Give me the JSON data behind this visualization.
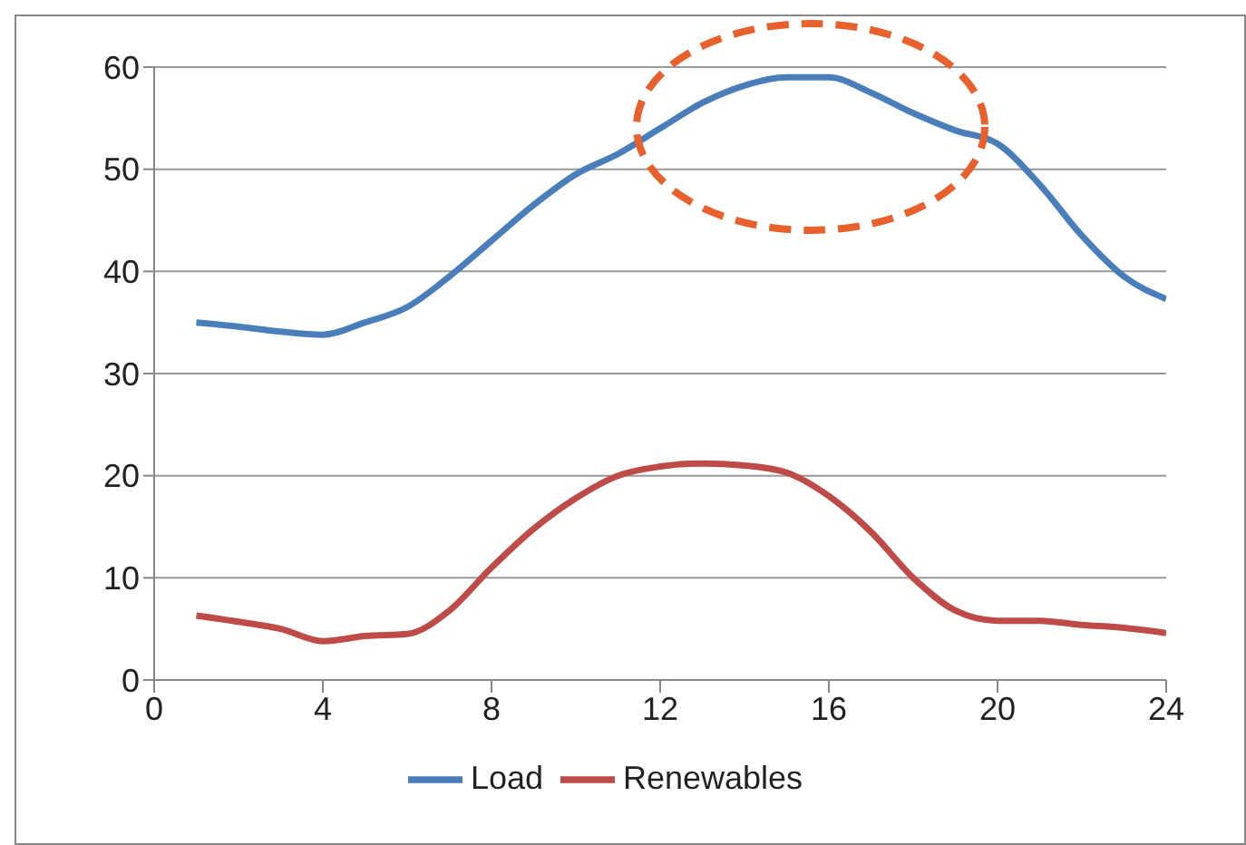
{
  "chart_data": {
    "type": "line",
    "x": [
      1,
      2,
      3,
      4,
      5,
      6,
      7,
      8,
      9,
      10,
      11,
      12,
      13,
      14,
      15,
      16,
      17,
      18,
      19,
      20,
      21,
      22,
      23,
      24
    ],
    "series": [
      {
        "name": "Load",
        "color": "#4a7ebb",
        "values": [
          35,
          34.6,
          34.1,
          33.8,
          35,
          36.5,
          39.5,
          43,
          46.5,
          49.5,
          51.5,
          54,
          56.5,
          58.2,
          59,
          59,
          57.5,
          55.5,
          53.8,
          52.5,
          48.5,
          43.5,
          39.5,
          37.3
        ]
      },
      {
        "name": "Renewables",
        "color": "#be4b48",
        "values": [
          6.3,
          5.7,
          5,
          3.8,
          4.3,
          4.5,
          6.8,
          11,
          14.8,
          17.8,
          20,
          20.9,
          21.2,
          21,
          20.3,
          18,
          14.5,
          10,
          6.8,
          5.8,
          5.8,
          5.4,
          5.1,
          4.6
        ]
      }
    ],
    "xlim": [
      0,
      24
    ],
    "xticks": [
      0,
      4,
      8,
      12,
      16,
      20,
      24
    ],
    "ylim": [
      0,
      60
    ],
    "yticks": [
      0,
      10,
      20,
      30,
      40,
      50,
      60
    ],
    "grid": "y",
    "legend": "bottom",
    "marker": "none",
    "line_style": "solid"
  }
}
